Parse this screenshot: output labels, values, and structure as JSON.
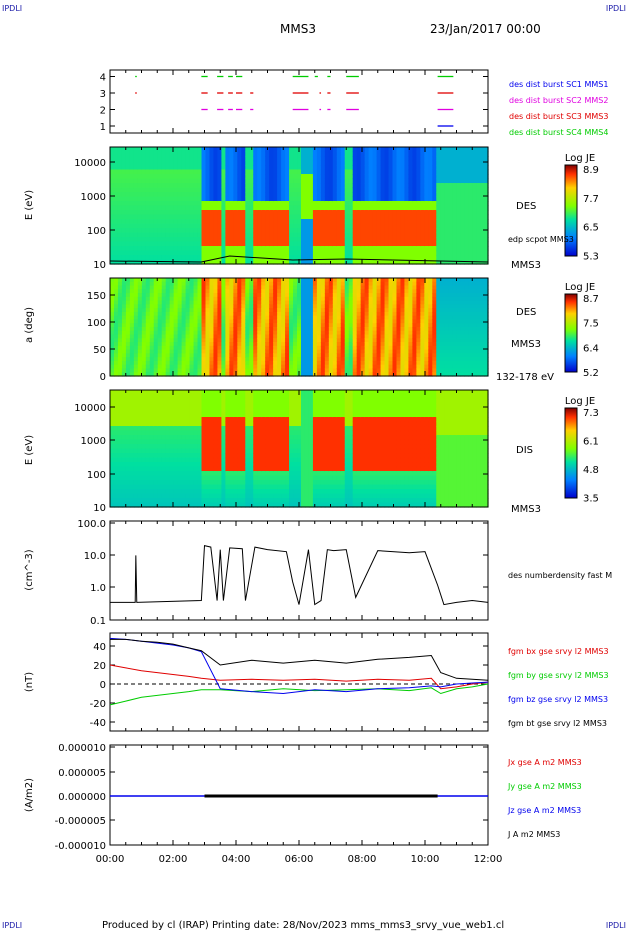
{
  "corners": {
    "tl": "IPDLI",
    "tr": "IPDLI",
    "bl": "IPDLI",
    "br": "IPDLI"
  },
  "header": {
    "spacecraft": "MMS3",
    "date": "23/Jan/2017 00:00"
  },
  "footer": {
    "text": "Produced by cl (IRAP)   Printing date: 28/Nov/2023   mms_mms3_srvy_vue_web1.cl"
  },
  "time_axis": {
    "start": "00:00",
    "end": "12:00",
    "ticks": [
      "00:00",
      "02:00",
      "04:00",
      "06:00",
      "08:00",
      "10:00",
      "12:00"
    ]
  },
  "colors": {
    "red": "#e00000",
    "green": "#00cc00",
    "blue": "#0000ee",
    "magenta": "#e000e0",
    "black": "#000000"
  },
  "chart_data": [
    {
      "type": "scatter",
      "name_panel": "burst",
      "y_ticks": [
        "4",
        "3",
        "2",
        "1"
      ],
      "legend": [
        "des dist burst SC1 MMS1",
        "des dist burst SC2 MMS2",
        "des dist burst SC3 MMS3",
        "des dist burst SC4 MMS4"
      ],
      "legend_colors": [
        "#0000ee",
        "#e000e0",
        "#e00000",
        "#00cc00"
      ],
      "series": [
        {
          "level": 4,
          "color": "#00cc00",
          "intervals": [
            [
              0.8,
              0.85
            ],
            [
              2.9,
              3.1
            ],
            [
              3.4,
              3.6
            ],
            [
              3.75,
              3.9
            ],
            [
              4.0,
              4.2
            ],
            [
              5.8,
              6.3
            ],
            [
              6.5,
              6.6
            ],
            [
              6.9,
              7.0
            ],
            [
              7.5,
              7.9
            ],
            [
              10.4,
              10.9
            ]
          ]
        },
        {
          "level": 3,
          "color": "#e00000",
          "intervals": [
            [
              0.8,
              0.85
            ],
            [
              2.9,
              3.1
            ],
            [
              3.4,
              3.6
            ],
            [
              3.75,
              3.9
            ],
            [
              4.0,
              4.2
            ],
            [
              4.45,
              4.55
            ],
            [
              5.8,
              6.3
            ],
            [
              6.65,
              6.7
            ],
            [
              6.9,
              7.0
            ],
            [
              7.5,
              7.9
            ],
            [
              10.4,
              10.9
            ]
          ]
        },
        {
          "level": 2,
          "color": "#e000e0",
          "intervals": [
            [
              2.9,
              3.1
            ],
            [
              3.4,
              3.6
            ],
            [
              3.75,
              3.9
            ],
            [
              4.0,
              4.2
            ],
            [
              4.45,
              4.55
            ],
            [
              5.8,
              6.3
            ],
            [
              6.65,
              6.7
            ],
            [
              6.9,
              7.0
            ],
            [
              7.5,
              7.9
            ],
            [
              10.4,
              10.9
            ]
          ]
        },
        {
          "level": 1,
          "color": "#0000ee",
          "intervals": [
            [
              10.4,
              10.9
            ]
          ]
        }
      ]
    },
    {
      "type": "heatmap",
      "name_panel": "des-energy",
      "ylabel": "E (eV)",
      "y_ticks": [
        "10000",
        "1000",
        "100",
        "10"
      ],
      "colorbar": {
        "title": "Log JE",
        "ticks": [
          "8.9",
          "7.7",
          "6.5",
          "5.3"
        ]
      },
      "labels": [
        "DES",
        "edp scpot MMS3",
        "MMS3"
      ]
    },
    {
      "type": "heatmap",
      "name_panel": "des-pitch",
      "ylabel": "a (deg)",
      "y_ticks": [
        "150",
        "100",
        "50",
        "0"
      ],
      "colorbar": {
        "title": "Log JE",
        "ticks": [
          "8.7",
          "7.5",
          "6.4",
          "5.2"
        ]
      },
      "labels": [
        "DES",
        "MMS3",
        "132-178 eV"
      ]
    },
    {
      "type": "heatmap",
      "name_panel": "dis-energy",
      "ylabel": "E (eV)",
      "y_ticks": [
        "10000",
        "1000",
        "100",
        "10"
      ],
      "colorbar": {
        "title": "Log JE",
        "ticks": [
          "7.3",
          "6.1",
          "4.8",
          "3.5"
        ]
      },
      "labels": [
        "DIS",
        "MMS3"
      ]
    },
    {
      "type": "line",
      "name_panel": "density",
      "ylabel": "(cm^-3)",
      "y_ticks": [
        "100.0",
        "10.0",
        "1.0",
        "0.1"
      ],
      "legend": [
        "des numberdensity fast M"
      ],
      "x": [
        0,
        0.8,
        0.82,
        0.85,
        2.9,
        3.0,
        3.2,
        3.4,
        3.5,
        3.6,
        3.8,
        4.2,
        4.3,
        4.6,
        5.0,
        5.6,
        5.8,
        6.0,
        6.3,
        6.5,
        6.7,
        6.9,
        7.1,
        7.5,
        7.8,
        8.5,
        9.5,
        10.0,
        10.4,
        10.6,
        11.0,
        11.5,
        12.0
      ],
      "values": [
        0.35,
        0.35,
        10,
        0.35,
        0.4,
        20,
        18,
        0.4,
        15,
        0.4,
        17,
        16,
        0.4,
        18,
        15,
        13,
        1.5,
        0.3,
        15,
        0.3,
        0.4,
        15,
        14,
        15,
        0.5,
        14,
        12,
        13,
        1.2,
        0.3,
        0.35,
        0.4,
        0.35
      ]
    },
    {
      "type": "line",
      "name_panel": "fgm",
      "ylabel": "(nT)",
      "y_ticks": [
        "40",
        "20",
        "0",
        "-20",
        "-40"
      ],
      "ylim": [
        -48,
        50
      ],
      "legend": [
        "fgm bx gse srvy l2 MMS3",
        "fgm by gse srvy l2 MMS3",
        "fgm bz gse srvy l2 MMS3",
        "fgm bt gse srvy l2 MMS3"
      ],
      "legend_colors": [
        "#e00000",
        "#00cc00",
        "#0000ee",
        "#000000"
      ],
      "x": [
        0,
        0.5,
        1,
        1.5,
        2,
        2.5,
        2.9,
        3.5,
        4.5,
        5.5,
        6.5,
        7.5,
        8.5,
        9.5,
        10.2,
        10.5,
        11,
        11.5,
        12
      ],
      "series": [
        {
          "name": "fgm bx gse srvy l2 MMS3",
          "color": "#e00000",
          "values": [
            20,
            17,
            14,
            12,
            10,
            8,
            6,
            4,
            5,
            4,
            5,
            3,
            5,
            4,
            6,
            -5,
            -3,
            0,
            2
          ]
        },
        {
          "name": "fgm by gse srvy l2 MMS3",
          "color": "#00cc00",
          "values": [
            -22,
            -18,
            -14,
            -12,
            -10,
            -8,
            -6,
            -6,
            -8,
            -5,
            -7,
            -6,
            -5,
            -7,
            -4,
            -10,
            -5,
            -3,
            0
          ]
        },
        {
          "name": "fgm bz gse srvy l2 MMS3",
          "color": "#0000ee",
          "values": [
            48,
            47,
            45,
            43,
            41,
            38,
            34,
            -5,
            -8,
            -10,
            -6,
            -8,
            -5,
            -4,
            -2,
            -3,
            0,
            1,
            2
          ]
        },
        {
          "name": "fgm bt gse srvy l2 MMS3",
          "color": "#000000",
          "values": [
            47,
            47,
            45,
            44,
            42,
            38,
            35,
            20,
            25,
            22,
            25,
            22,
            26,
            28,
            30,
            12,
            6,
            5,
            4
          ]
        }
      ]
    },
    {
      "type": "line",
      "name_panel": "current",
      "ylabel": "(A/m2)",
      "y_ticks": [
        "0.000010",
        "0.000005",
        "0.000000",
        "-0.000005",
        "-0.000010"
      ],
      "ylim": [
        -1e-05,
        1e-05
      ],
      "legend": [
        "Jx gse A m2 MMS3",
        "Jy gse A m2 MMS3",
        "Jz gse A m2 MMS3",
        "J A m2 MMS3"
      ],
      "legend_colors": [
        "#e00000",
        "#00cc00",
        "#0000ee",
        "#000000"
      ]
    }
  ]
}
